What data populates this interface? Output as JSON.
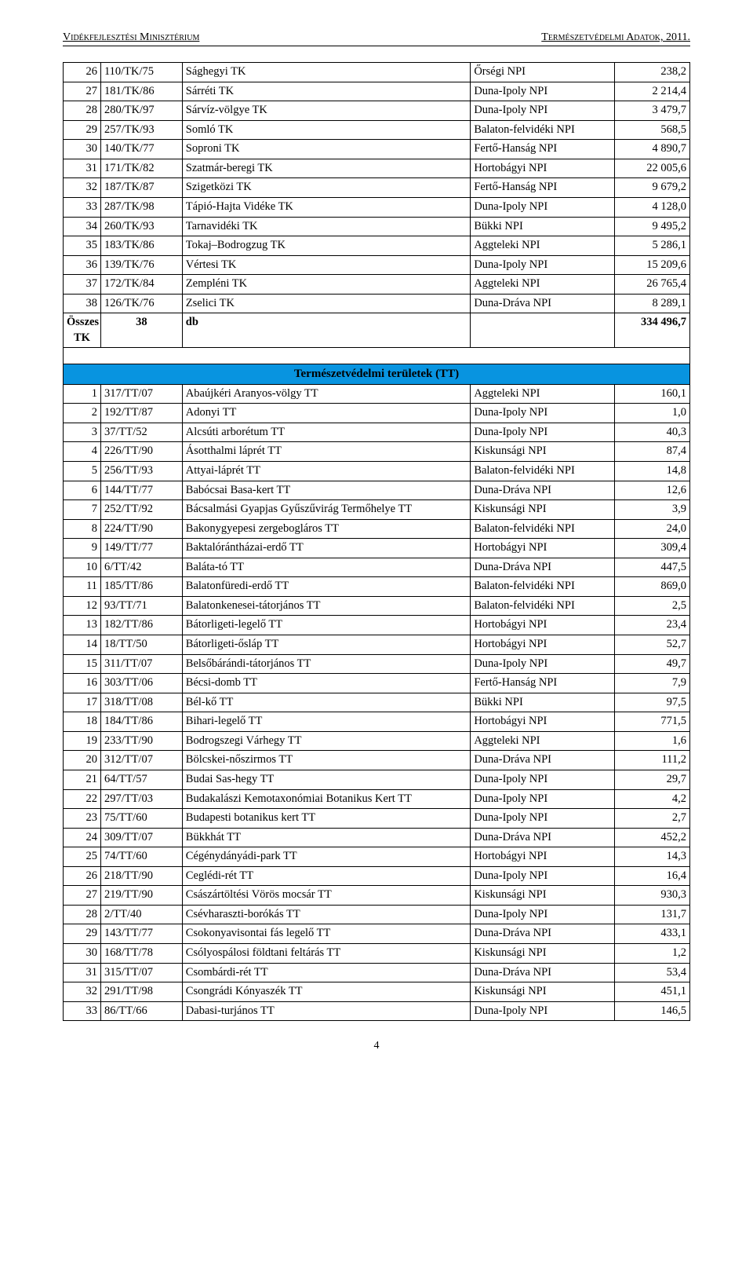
{
  "header": {
    "left": "Vidékfejlesztési Minisztérium",
    "right": "Természetvédelmi Adatok, 2011."
  },
  "colors": {
    "section_bg": "#0894e0",
    "border": "#000000",
    "background": "#ffffff"
  },
  "tk_rows": [
    {
      "idx": "26",
      "code": "110/TK/75",
      "name": "Sághegyi TK",
      "npi": "Őrségi NPI",
      "val": "238,2"
    },
    {
      "idx": "27",
      "code": "181/TK/86",
      "name": "Sárréti TK",
      "npi": "Duna-Ipoly NPI",
      "val": "2 214,4"
    },
    {
      "idx": "28",
      "code": "280/TK/97",
      "name": "Sárvíz-völgye TK",
      "npi": "Duna-Ipoly NPI",
      "val": "3 479,7"
    },
    {
      "idx": "29",
      "code": "257/TK/93",
      "name": "Somló TK",
      "npi": "Balaton-felvidéki NPI",
      "val": "568,5"
    },
    {
      "idx": "30",
      "code": "140/TK/77",
      "name": "Soproni TK",
      "npi": "Fertő-Hanság NPI",
      "val": "4 890,7"
    },
    {
      "idx": "31",
      "code": "171/TK/82",
      "name": "Szatmár-beregi TK",
      "npi": "Hortobágyi NPI",
      "val": "22 005,6"
    },
    {
      "idx": "32",
      "code": "187/TK/87",
      "name": "Szigetközi TK",
      "npi": "Fertő-Hanság NPI",
      "val": "9 679,2"
    },
    {
      "idx": "33",
      "code": "287/TK/98",
      "name": "Tápió-Hajta Vidéke TK",
      "npi": "Duna-Ipoly NPI",
      "val": "4 128,0"
    },
    {
      "idx": "34",
      "code": "260/TK/93",
      "name": "Tarnavidéki TK",
      "npi": "Bükki NPI",
      "val": "9 495,2"
    },
    {
      "idx": "35",
      "code": "183/TK/86",
      "name": "Tokaj–Bodrogzug TK",
      "npi": "Aggteleki NPI",
      "val": "5 286,1"
    },
    {
      "idx": "36",
      "code": "139/TK/76",
      "name": "Vértesi TK",
      "npi": "Duna-Ipoly NPI",
      "val": "15 209,6"
    },
    {
      "idx": "37",
      "code": "172/TK/84",
      "name": "Zempléni TK",
      "npi": "Aggteleki NPI",
      "val": "26 765,4"
    },
    {
      "idx": "38",
      "code": "126/TK/76",
      "name": "Zselici TK",
      "npi": "Duna-Dráva NPI",
      "val": "8 289,1"
    }
  ],
  "tk_total": {
    "label": "Összes TK",
    "count": "38",
    "unit": "db",
    "npi": "",
    "val": "334 496,7"
  },
  "section_title": "Természetvédelmi területek (TT)",
  "tt_rows": [
    {
      "idx": "1",
      "code": "317/TT/07",
      "name": "Abaújkéri Aranyos-völgy TT",
      "npi": "Aggteleki NPI",
      "val": "160,1"
    },
    {
      "idx": "2",
      "code": "192/TT/87",
      "name": "Adonyi TT",
      "npi": "Duna-Ipoly NPI",
      "val": "1,0"
    },
    {
      "idx": "3",
      "code": "37/TT/52",
      "name": "Alcsúti arborétum TT",
      "npi": "Duna-Ipoly NPI",
      "val": "40,3"
    },
    {
      "idx": "4",
      "code": "226/TT/90",
      "name": "Ásotthalmi láprét TT",
      "npi": "Kiskunsági NPI",
      "val": "87,4"
    },
    {
      "idx": "5",
      "code": "256/TT/93",
      "name": "Attyai-láprét TT",
      "npi": "Balaton-felvidéki NPI",
      "val": "14,8"
    },
    {
      "idx": "6",
      "code": "144/TT/77",
      "name": "Babócsai Basa-kert TT",
      "npi": "Duna-Dráva NPI",
      "val": "12,6"
    },
    {
      "idx": "7",
      "code": "252/TT/92",
      "name": "Bácsalmási Gyapjas Gyűszűvirág Termőhelye TT",
      "npi": "Kiskunsági NPI",
      "val": "3,9"
    },
    {
      "idx": "8",
      "code": "224/TT/90",
      "name": "Bakonygyepesi zergebogláros TT",
      "npi": "Balaton-felvidéki NPI",
      "val": "24,0"
    },
    {
      "idx": "9",
      "code": "149/TT/77",
      "name": "Baktalórántházai-erdő TT",
      "npi": "Hortobágyi NPI",
      "val": "309,4"
    },
    {
      "idx": "10",
      "code": "6/TT/42",
      "name": "Baláta-tó TT",
      "npi": "Duna-Dráva NPI",
      "val": "447,5"
    },
    {
      "idx": "11",
      "code": "185/TT/86",
      "name": "Balatonfüredi-erdő TT",
      "npi": "Balaton-felvidéki NPI",
      "val": "869,0"
    },
    {
      "idx": "12",
      "code": "93/TT/71",
      "name": "Balatonkenesei-tátorjános TT",
      "npi": "Balaton-felvidéki NPI",
      "val": "2,5"
    },
    {
      "idx": "13",
      "code": "182/TT/86",
      "name": "Bátorligeti-legelő TT",
      "npi": "Hortobágyi NPI",
      "val": "23,4"
    },
    {
      "idx": "14",
      "code": "18/TT/50",
      "name": "Bátorligeti-ősláp TT",
      "npi": "Hortobágyi NPI",
      "val": "52,7"
    },
    {
      "idx": "15",
      "code": "311/TT/07",
      "name": "Belsőbárándi-tátorjános TT",
      "npi": "Duna-Ipoly NPI",
      "val": "49,7"
    },
    {
      "idx": "16",
      "code": "303/TT/06",
      "name": "Bécsi-domb TT",
      "npi": "Fertő-Hanság NPI",
      "val": "7,9"
    },
    {
      "idx": "17",
      "code": "318/TT/08",
      "name": "Bél-kő TT",
      "npi": "Bükki NPI",
      "val": "97,5"
    },
    {
      "idx": "18",
      "code": "184/TT/86",
      "name": "Bihari-legelő TT",
      "npi": "Hortobágyi NPI",
      "val": "771,5"
    },
    {
      "idx": "19",
      "code": "233/TT/90",
      "name": "Bodrogszegi Várhegy TT",
      "npi": "Aggteleki NPI",
      "val": "1,6"
    },
    {
      "idx": "20",
      "code": "312/TT/07",
      "name": "Bölcskei-nőszirmos TT",
      "npi": "Duna-Dráva NPI",
      "val": "111,2"
    },
    {
      "idx": "21",
      "code": "64/TT/57",
      "name": "Budai Sas-hegy TT",
      "npi": "Duna-Ipoly NPI",
      "val": "29,7"
    },
    {
      "idx": "22",
      "code": "297/TT/03",
      "name": "Budakalászi Kemotaxonómiai Botanikus Kert TT",
      "npi": "Duna-Ipoly NPI",
      "val": "4,2"
    },
    {
      "idx": "23",
      "code": "75/TT/60",
      "name": "Budapesti botanikus kert TT",
      "npi": "Duna-Ipoly NPI",
      "val": "2,7"
    },
    {
      "idx": "24",
      "code": "309/TT/07",
      "name": "Bükkhát TT",
      "npi": "Duna-Dráva NPI",
      "val": "452,2"
    },
    {
      "idx": "25",
      "code": "74/TT/60",
      "name": "Cégénydányádi-park TT",
      "npi": "Hortobágyi NPI",
      "val": "14,3"
    },
    {
      "idx": "26",
      "code": "218/TT/90",
      "name": "Ceglédi-rét TT",
      "npi": "Duna-Ipoly NPI",
      "val": "16,4"
    },
    {
      "idx": "27",
      "code": "219/TT/90",
      "name": "Császártöltési Vörös mocsár TT",
      "npi": "Kiskunsági NPI",
      "val": "930,3"
    },
    {
      "idx": "28",
      "code": "2/TT/40",
      "name": "Csévharaszti-borókás TT",
      "npi": "Duna-Ipoly NPI",
      "val": "131,7"
    },
    {
      "idx": "29",
      "code": "143/TT/77",
      "name": "Csokonyavisontai fás legelő TT",
      "npi": "Duna-Dráva NPI",
      "val": "433,1"
    },
    {
      "idx": "30",
      "code": "168/TT/78",
      "name": "Csólyospálosi földtani feltárás TT",
      "npi": "Kiskunsági NPI",
      "val": "1,2"
    },
    {
      "idx": "31",
      "code": "315/TT/07",
      "name": "Csombárdi-rét TT",
      "npi": "Duna-Dráva NPI",
      "val": "53,4"
    },
    {
      "idx": "32",
      "code": "291/TT/98",
      "name": "Csongrádi Kónyaszék TT",
      "npi": "Kiskunsági NPI",
      "val": "451,1"
    },
    {
      "idx": "33",
      "code": "86/TT/66",
      "name": "Dabasi-turjános TT",
      "npi": "Duna-Ipoly NPI",
      "val": "146,5"
    }
  ],
  "footer": {
    "page": "4"
  }
}
